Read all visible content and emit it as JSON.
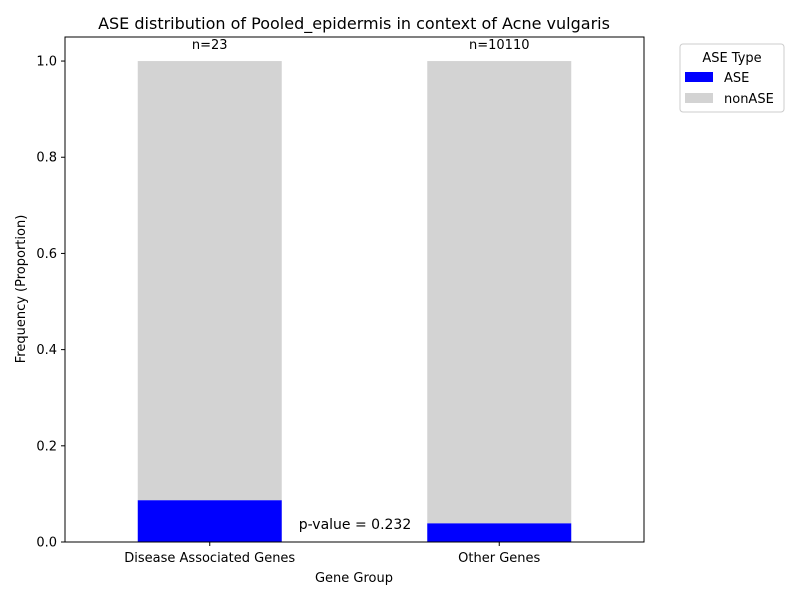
{
  "chart_data": {
    "type": "bar",
    "stacked": true,
    "title": "ASE distribution of Pooled_epidermis in context of Acne vulgaris",
    "xlabel": "Gene Group",
    "ylabel": "Frequency (Proportion)",
    "ylim": [
      0,
      1.05
    ],
    "yticks": [
      "0.0",
      "0.2",
      "0.4",
      "0.6",
      "0.8",
      "1.0"
    ],
    "categories": [
      "Disease Associated Genes",
      "Other Genes"
    ],
    "counts": [
      "n=23",
      "n=10110"
    ],
    "series": [
      {
        "name": "ASE",
        "color": "#0000ff",
        "values": [
          0.087,
          0.039
        ]
      },
      {
        "name": "nonASE",
        "color": "#d3d3d3",
        "values": [
          0.913,
          0.961
        ]
      }
    ],
    "legend": {
      "title": "ASE Type",
      "placement": "outside-top-right"
    },
    "annotation": "p-value = 0.232",
    "grid": false
  }
}
